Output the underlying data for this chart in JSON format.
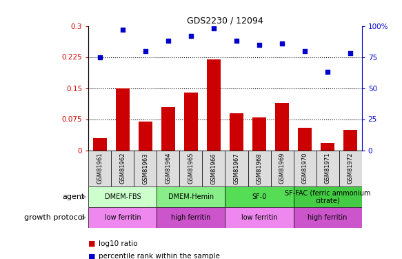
{
  "title": "GDS2230 / 12094",
  "samples": [
    "GSM81961",
    "GSM81962",
    "GSM81963",
    "GSM81964",
    "GSM81965",
    "GSM81966",
    "GSM81967",
    "GSM81968",
    "GSM81969",
    "GSM81970",
    "GSM81971",
    "GSM81972"
  ],
  "log10_ratio": [
    0.03,
    0.15,
    0.07,
    0.105,
    0.14,
    0.22,
    0.09,
    0.08,
    0.115,
    0.055,
    0.018,
    0.05
  ],
  "percentile": [
    75,
    97,
    80,
    88,
    92,
    98,
    88,
    85,
    86,
    80,
    63,
    78
  ],
  "ylim_left": [
    0,
    0.3
  ],
  "ylim_right": [
    0,
    100
  ],
  "yticks_left": [
    0,
    0.075,
    0.15,
    0.225,
    0.3
  ],
  "ytick_labels_left": [
    "0",
    "0.075",
    "0.15",
    "0.225",
    "0.3"
  ],
  "yticks_right": [
    0,
    25,
    50,
    75,
    100
  ],
  "ytick_labels_right": [
    "0",
    "25",
    "50",
    "75",
    "100%"
  ],
  "hlines": [
    0.075,
    0.15,
    0.225
  ],
  "bar_color": "#cc0000",
  "dot_color": "#0000cc",
  "agent_groups": [
    {
      "label": "DMEM-FBS",
      "start": 0,
      "end": 3,
      "color": "#ccffcc"
    },
    {
      "label": "DMEM-Hemin",
      "start": 3,
      "end": 6,
      "color": "#88ee88"
    },
    {
      "label": "SF-0",
      "start": 6,
      "end": 9,
      "color": "#55dd55"
    },
    {
      "label": "SF-FAC (ferric ammonium\ncitrate)",
      "start": 9,
      "end": 12,
      "color": "#44cc44"
    }
  ],
  "protocol_groups": [
    {
      "label": "low ferritin",
      "start": 0,
      "end": 3,
      "color": "#ee88ee"
    },
    {
      "label": "high ferritin",
      "start": 3,
      "end": 6,
      "color": "#cc55cc"
    },
    {
      "label": "low ferritin",
      "start": 6,
      "end": 9,
      "color": "#ee88ee"
    },
    {
      "label": "high ferritin",
      "start": 9,
      "end": 12,
      "color": "#cc55cc"
    }
  ],
  "sample_box_color": "#dddddd",
  "arrow_color": "#999999"
}
